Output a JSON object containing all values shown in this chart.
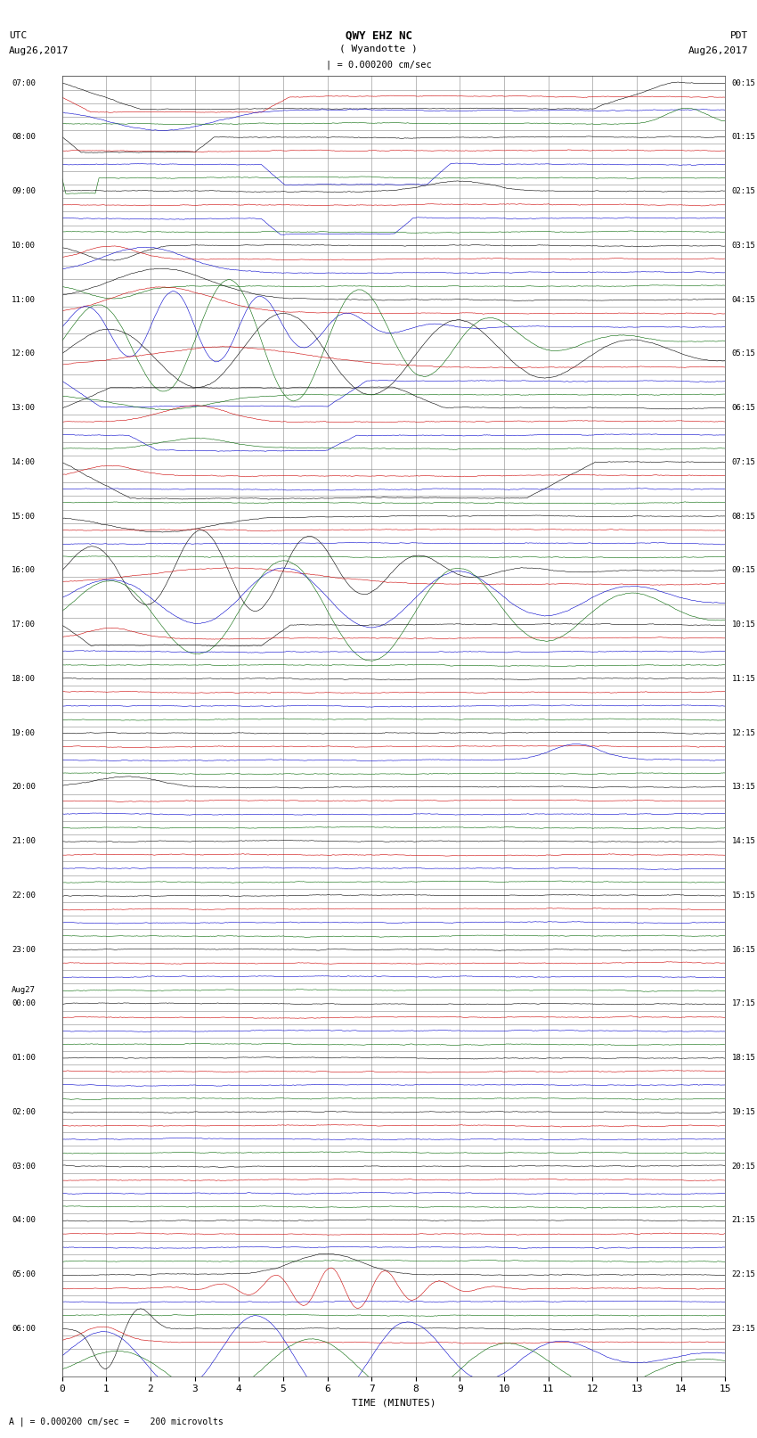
{
  "title_line1": "QWY EHZ NC",
  "title_line2": "( Wyandotte )",
  "scale_label": "| = 0.000200 cm/sec",
  "left_label_top": "UTC",
  "left_label_date": "Aug26,2017",
  "right_label_top": "PDT",
  "right_label_date": "Aug26,2017",
  "bottom_label": "TIME (MINUTES)",
  "bottom_note": "A | = 0.000200 cm/sec =    200 microvolts",
  "n_rows": 96,
  "n_minutes": 15,
  "bg_color": "#ffffff",
  "grid_color": "#888888",
  "trace_colors": [
    "#000000",
    "#cc0000",
    "#0000cc",
    "#006600"
  ],
  "xmin": 0,
  "xmax": 15,
  "xlabel_ticks": [
    0,
    1,
    2,
    3,
    4,
    5,
    6,
    7,
    8,
    9,
    10,
    11,
    12,
    13,
    14,
    15
  ],
  "utc_label_rows": [
    [
      0,
      "07:00"
    ],
    [
      4,
      "08:00"
    ],
    [
      8,
      "09:00"
    ],
    [
      12,
      "10:00"
    ],
    [
      16,
      "11:00"
    ],
    [
      20,
      "12:00"
    ],
    [
      24,
      "13:00"
    ],
    [
      28,
      "14:00"
    ],
    [
      32,
      "15:00"
    ],
    [
      36,
      "16:00"
    ],
    [
      40,
      "17:00"
    ],
    [
      44,
      "18:00"
    ],
    [
      48,
      "19:00"
    ],
    [
      52,
      "20:00"
    ],
    [
      56,
      "21:00"
    ],
    [
      60,
      "22:00"
    ],
    [
      64,
      "23:00"
    ],
    [
      67,
      "Aug27"
    ],
    [
      68,
      "00:00"
    ],
    [
      72,
      "01:00"
    ],
    [
      76,
      "02:00"
    ],
    [
      80,
      "03:00"
    ],
    [
      84,
      "04:00"
    ],
    [
      88,
      "05:00"
    ],
    [
      92,
      "06:00"
    ]
  ],
  "pdt_label_rows": [
    [
      0,
      "00:15"
    ],
    [
      4,
      "01:15"
    ],
    [
      8,
      "02:15"
    ],
    [
      12,
      "03:15"
    ],
    [
      16,
      "04:15"
    ],
    [
      20,
      "05:15"
    ],
    [
      24,
      "06:15"
    ],
    [
      28,
      "07:15"
    ],
    [
      32,
      "08:15"
    ],
    [
      36,
      "09:15"
    ],
    [
      40,
      "10:15"
    ],
    [
      44,
      "11:15"
    ],
    [
      48,
      "12:15"
    ],
    [
      52,
      "13:15"
    ],
    [
      56,
      "14:15"
    ],
    [
      60,
      "15:15"
    ],
    [
      64,
      "16:15"
    ],
    [
      68,
      "17:15"
    ],
    [
      72,
      "18:15"
    ],
    [
      76,
      "19:15"
    ],
    [
      80,
      "20:15"
    ],
    [
      84,
      "21:15"
    ],
    [
      88,
      "22:15"
    ],
    [
      92,
      "23:15"
    ]
  ]
}
